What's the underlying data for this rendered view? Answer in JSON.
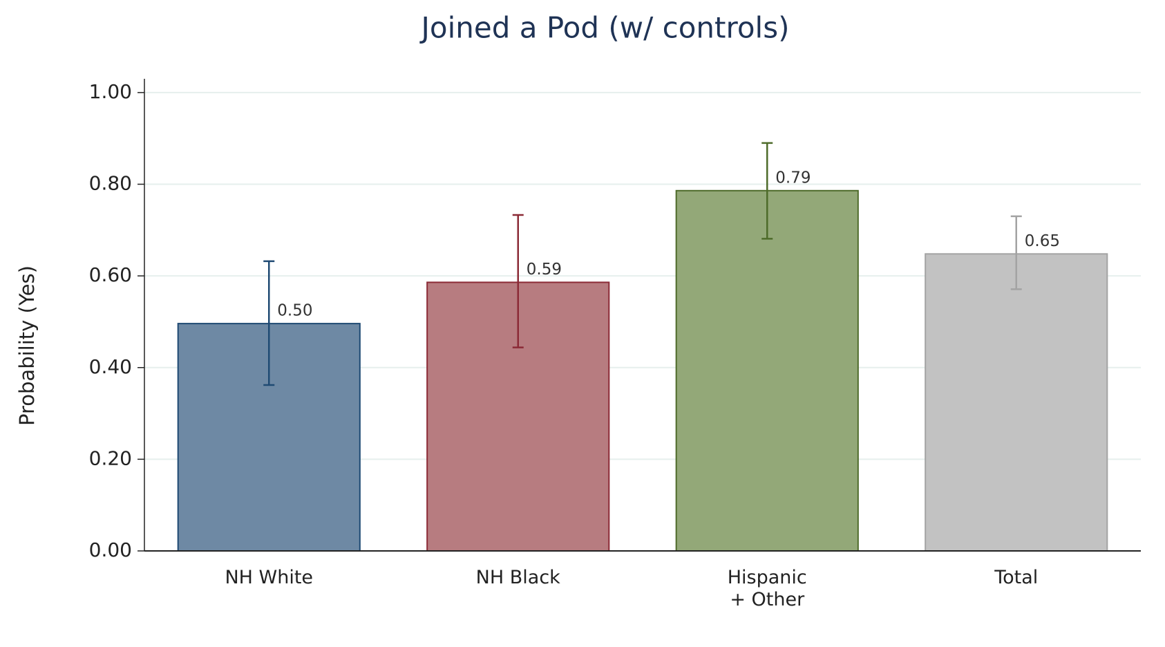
{
  "chart_data": {
    "type": "bar",
    "title": "Joined a Pod (w/ controls)",
    "y_label": "Probability (Yes)",
    "categories": [
      "NH White",
      "NH Black",
      "Hispanic\n+ Other",
      "Total"
    ],
    "values": [
      0.496,
      0.586,
      0.786,
      0.648
    ],
    "value_labels": [
      "0.50",
      "0.59",
      "0.79",
      "0.65"
    ],
    "ci_low": [
      0.362,
      0.444,
      0.681,
      0.571
    ],
    "ci_high": [
      0.632,
      0.733,
      0.89,
      0.73
    ],
    "colors": [
      "#6e89a4",
      "#b77c80",
      "#93a878",
      "#c2c2c2"
    ],
    "edge_colors": [
      "#1f4a73",
      "#8b2a36",
      "#4e6b2a",
      "#a3a3a3"
    ],
    "ylim": [
      0,
      1.03
    ],
    "yticks": [
      {
        "value": 0,
        "label": "0.00"
      },
      {
        "value": 0.2,
        "label": "0.20"
      },
      {
        "value": 0.4,
        "label": "0.40"
      },
      {
        "value": 0.6,
        "label": "0.60"
      },
      {
        "value": 0.8,
        "label": "0.80"
      },
      {
        "value": 1,
        "label": "1.00"
      }
    ],
    "grid": true
  }
}
